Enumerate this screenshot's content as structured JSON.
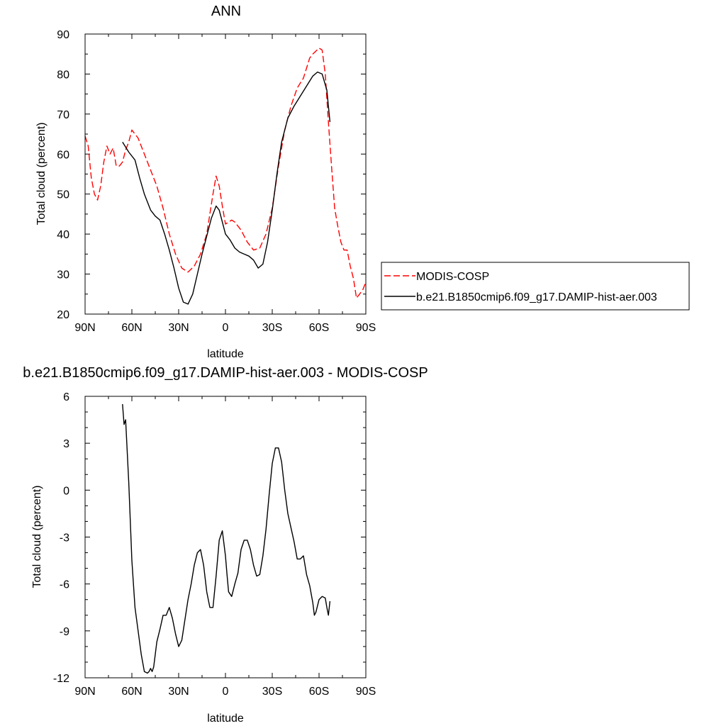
{
  "chart_data": [
    {
      "type": "line",
      "title": "ANN",
      "xlabel": "latitude",
      "ylabel": "Total cloud (percent)",
      "xlim": [
        -90,
        90
      ],
      "ylim": [
        20,
        90
      ],
      "xticks": [
        -90,
        -60,
        -30,
        0,
        30,
        60,
        90
      ],
      "xtick_labels": [
        "90N",
        "60N",
        "30N",
        "0",
        "30S",
        "60S",
        "90S"
      ],
      "yticks": [
        20,
        30,
        40,
        50,
        60,
        70,
        80,
        90
      ],
      "ytick_labels": [
        "20",
        "30",
        "40",
        "50",
        "60",
        "70",
        "80",
        "90"
      ],
      "grid": false,
      "legend_position": "right",
      "series": [
        {
          "name": "MODIS-COSP",
          "color": "#ff0000",
          "dash": "dashed",
          "x": [
            -90,
            -88,
            -86,
            -84,
            -82,
            -80,
            -78,
            -76,
            -74,
            -72,
            -70,
            -68,
            -66,
            -64,
            -62,
            -60,
            -58,
            -56,
            -52,
            -48,
            -44,
            -40,
            -36,
            -32,
            -28,
            -24,
            -20,
            -16,
            -12,
            -8,
            -6,
            -4,
            -2,
            0,
            2,
            4,
            6,
            10,
            14,
            18,
            22,
            26,
            30,
            34,
            38,
            42,
            46,
            50,
            54,
            56,
            60,
            62,
            64,
            66,
            68,
            70,
            72,
            74,
            76,
            78,
            80,
            82,
            84,
            86,
            88,
            90
          ],
          "y": [
            64.5,
            62,
            54,
            50,
            48.5,
            52,
            58,
            62,
            60,
            61.5,
            57,
            57,
            58,
            61,
            63,
            66,
            65,
            64,
            60,
            56,
            52,
            46.5,
            40,
            35,
            31.5,
            30.5,
            32,
            35,
            40,
            50,
            54.5,
            52,
            47,
            42.5,
            43,
            43.5,
            43,
            41,
            38,
            36,
            36.5,
            40,
            46.5,
            57,
            66,
            72,
            76.5,
            79,
            84,
            85,
            86.5,
            86,
            80,
            68,
            57,
            46.5,
            42,
            38,
            36,
            36,
            32,
            29,
            24,
            25,
            26,
            28
          ]
        },
        {
          "name": "b.e21.B1850cmip6.f09_g17.DAMIP-hist-aer.003",
          "color": "#000000",
          "dash": "solid",
          "x": [
            -66,
            -62,
            -58,
            -55,
            -52,
            -48,
            -45,
            -42,
            -39,
            -36,
            -33,
            -30,
            -27,
            -24,
            -21,
            -18,
            -15,
            -12,
            -9,
            -6,
            -4,
            -2,
            0,
            3,
            6,
            9,
            12,
            15,
            18,
            21,
            24,
            27,
            30,
            33,
            36,
            40,
            44,
            48,
            52,
            56,
            59,
            62,
            65,
            67
          ],
          "y": [
            63,
            60.5,
            58.5,
            54,
            50,
            46,
            44.5,
            43.5,
            40,
            36,
            31.5,
            26.5,
            23,
            22.5,
            25,
            30,
            35,
            39.5,
            44,
            47,
            46,
            43,
            40,
            38.5,
            36.5,
            35.5,
            35,
            34.5,
            33.5,
            31.5,
            32.5,
            38,
            46,
            55,
            63,
            69,
            72,
            74.5,
            77,
            79.5,
            80.5,
            80,
            76,
            68
          ]
        }
      ]
    },
    {
      "type": "line",
      "title": "b.e21.B1850cmip6.f09_g17.DAMIP-hist-aer.003 - MODIS-COSP",
      "xlabel": "latitude",
      "ylabel": "Total cloud (percent)",
      "xlim": [
        -90,
        90
      ],
      "ylim": [
        -12,
        6
      ],
      "xticks": [
        -90,
        -60,
        -30,
        0,
        30,
        60,
        90
      ],
      "xtick_labels": [
        "90N",
        "60N",
        "30N",
        "0",
        "30S",
        "60S",
        "90S"
      ],
      "yticks": [
        -12,
        -9,
        -6,
        -3,
        0,
        3,
        6
      ],
      "ytick_labels": [
        "-12",
        "-9",
        "-6",
        "-3",
        "0",
        "3",
        "6"
      ],
      "grid": false,
      "series": [
        {
          "color": "#000000",
          "dash": "solid",
          "x": [
            -66,
            -65,
            -64,
            -63,
            -62,
            -61,
            -60,
            -58,
            -56,
            -54,
            -52,
            -50,
            -49,
            -48,
            -47,
            -46,
            -44,
            -42,
            -40,
            -38,
            -36,
            -34,
            -32,
            -30,
            -28,
            -26,
            -24,
            -22,
            -20,
            -18,
            -16,
            -14,
            -12,
            -10,
            -8,
            -6,
            -4,
            -2,
            -1,
            0,
            1,
            2,
            4,
            6,
            8,
            10,
            12,
            14,
            16,
            18,
            20,
            22,
            24,
            26,
            28,
            30,
            32,
            34,
            36,
            38,
            40,
            42,
            44,
            46,
            48,
            50,
            52,
            54,
            56,
            57,
            58,
            60,
            62,
            64,
            65,
            66,
            67
          ],
          "y": [
            5.5,
            4.2,
            4.5,
            2.5,
            0.5,
            -2,
            -4.5,
            -7.5,
            -9,
            -10.5,
            -11.6,
            -11.7,
            -11.6,
            -11.4,
            -11.6,
            -11.3,
            -9.7,
            -8.9,
            -8.0,
            -8.0,
            -7.5,
            -8.2,
            -9.2,
            -10.0,
            -9.6,
            -8.3,
            -7.0,
            -6.0,
            -4.8,
            -4.0,
            -3.8,
            -4.8,
            -6.5,
            -7.5,
            -7.5,
            -5.5,
            -3.2,
            -2.6,
            -3.4,
            -4.2,
            -5.4,
            -6.5,
            -6.8,
            -6.0,
            -5.3,
            -3.8,
            -3.2,
            -3.2,
            -3.8,
            -4.8,
            -5.5,
            -5.4,
            -4.2,
            -2.5,
            -0.3,
            1.7,
            2.7,
            2.7,
            1.8,
            0.0,
            -1.5,
            -2.4,
            -3.3,
            -4.4,
            -4.4,
            -4.2,
            -5.4,
            -6.1,
            -7.2,
            -8.0,
            -7.8,
            -7.0,
            -6.8,
            -6.9,
            -7.5,
            -8.0,
            -7.1
          ]
        }
      ]
    }
  ]
}
